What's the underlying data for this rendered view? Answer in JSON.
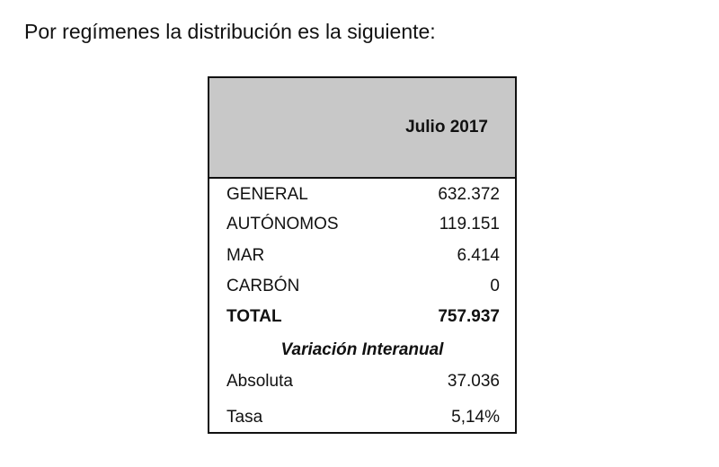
{
  "heading": "Por regímenes la distribución es la siguiente:",
  "table": {
    "header": "Julio 2017",
    "rows": [
      [
        "GENERAL",
        "632.372"
      ],
      [
        "AUTÓNOMOS",
        "119.151"
      ],
      [
        "MAR",
        "6.414"
      ],
      [
        "CARBÓN",
        "0"
      ],
      [
        "TOTAL",
        "757.937"
      ]
    ],
    "section": "Variación Interanual",
    "variation_rows": [
      [
        "Absoluta",
        "37.036"
      ],
      [
        "Tasa",
        "5,14%"
      ]
    ]
  }
}
